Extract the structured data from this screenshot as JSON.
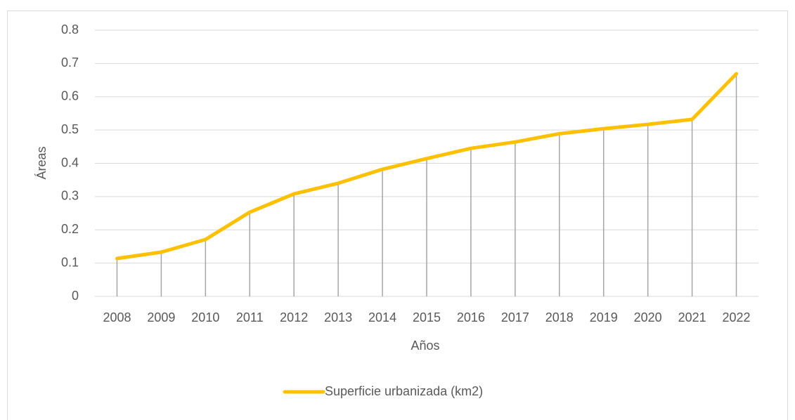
{
  "chart_data": {
    "type": "line",
    "categories": [
      "2008",
      "2009",
      "2010",
      "2011",
      "2012",
      "2013",
      "2014",
      "2015",
      "2016",
      "2017",
      "2018",
      "2019",
      "2020",
      "2021",
      "2022"
    ],
    "series": [
      {
        "name": "Superficie urbanizada (km2)",
        "color": "#ffc000",
        "values": [
          0.114,
          0.133,
          0.171,
          0.253,
          0.308,
          0.34,
          0.382,
          0.414,
          0.445,
          0.464,
          0.489,
          0.504,
          0.517,
          0.532,
          0.669
        ]
      }
    ],
    "xlabel": "Años",
    "ylabel": "Áreas",
    "ylim": [
      0,
      0.8
    ],
    "yticks": [
      0,
      0.1,
      0.2,
      0.3,
      0.4,
      0.5,
      0.6,
      0.7,
      0.8
    ],
    "grid": true,
    "drop_lines": true,
    "legend": "bottom"
  }
}
